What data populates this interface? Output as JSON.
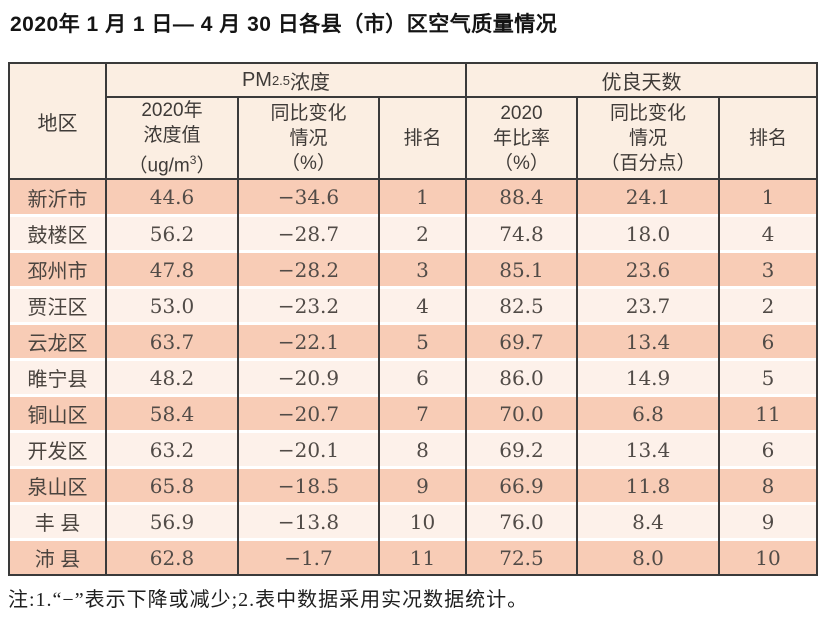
{
  "title": "2020年 1 月 1 日— 4 月 30 日各县（市）区空气质量情况",
  "note": "注:1.“−”表示下降或减少;2.表中数据采用实况数据统计。",
  "colors": {
    "row_dark": "#f8ccb6",
    "row_light": "#fdf1ea",
    "header_bg": "#fbeee2",
    "border": "#3a3a3a"
  },
  "table": {
    "region_header": "地区",
    "pm_group": {
      "prefix": "PM",
      "sub": "2.5",
      "suffix": " 浓度"
    },
    "good_group_label": "优良天数",
    "subheaders": {
      "pm_value": "2020年\n浓度值",
      "pm_value_unit_open": "（ug/m",
      "pm_value_unit_sup": "3",
      "pm_value_unit_close": "）",
      "pm_change": "同比变化\n情况\n（%）",
      "pm_rank": "排名",
      "good_ratio": "2020\n年比率\n（%）",
      "good_change": "同比变化\n情况\n（百分点）",
      "good_rank": "排名"
    },
    "rows": [
      {
        "region": "新沂市",
        "pm_value": "44.6",
        "pm_change": "−34.6",
        "pm_rank": "1",
        "good_ratio": "88.4",
        "good_change": "24.1",
        "good_rank": "1"
      },
      {
        "region": "鼓楼区",
        "pm_value": "56.2",
        "pm_change": "−28.7",
        "pm_rank": "2",
        "good_ratio": "74.8",
        "good_change": "18.0",
        "good_rank": "4"
      },
      {
        "region": "邳州市",
        "pm_value": "47.8",
        "pm_change": "−28.2",
        "pm_rank": "3",
        "good_ratio": "85.1",
        "good_change": "23.6",
        "good_rank": "3"
      },
      {
        "region": "贾汪区",
        "pm_value": "53.0",
        "pm_change": "−23.2",
        "pm_rank": "4",
        "good_ratio": "82.5",
        "good_change": "23.7",
        "good_rank": "2"
      },
      {
        "region": "云龙区",
        "pm_value": "63.7",
        "pm_change": "−22.1",
        "pm_rank": "5",
        "good_ratio": "69.7",
        "good_change": "13.4",
        "good_rank": "6"
      },
      {
        "region": "睢宁县",
        "pm_value": "48.2",
        "pm_change": "−20.9",
        "pm_rank": "6",
        "good_ratio": "86.0",
        "good_change": "14.9",
        "good_rank": "5"
      },
      {
        "region": "铜山区",
        "pm_value": "58.4",
        "pm_change": "−20.7",
        "pm_rank": "7",
        "good_ratio": "70.0",
        "good_change": "6.8",
        "good_rank": "11"
      },
      {
        "region": "开发区",
        "pm_value": "63.2",
        "pm_change": "−20.1",
        "pm_rank": "8",
        "good_ratio": "69.2",
        "good_change": "13.4",
        "good_rank": "6"
      },
      {
        "region": "泉山区",
        "pm_value": "65.8",
        "pm_change": "−18.5",
        "pm_rank": "9",
        "good_ratio": "66.9",
        "good_change": "11.8",
        "good_rank": "8"
      },
      {
        "region": "丰 县",
        "pm_value": "56.9",
        "pm_change": "−13.8",
        "pm_rank": "10",
        "good_ratio": "76.0",
        "good_change": "8.4",
        "good_rank": "9"
      },
      {
        "region": "沛 县",
        "pm_value": "62.8",
        "pm_change": "−1.7",
        "pm_rank": "11",
        "good_ratio": "72.5",
        "good_change": "8.0",
        "good_rank": "10"
      }
    ]
  }
}
